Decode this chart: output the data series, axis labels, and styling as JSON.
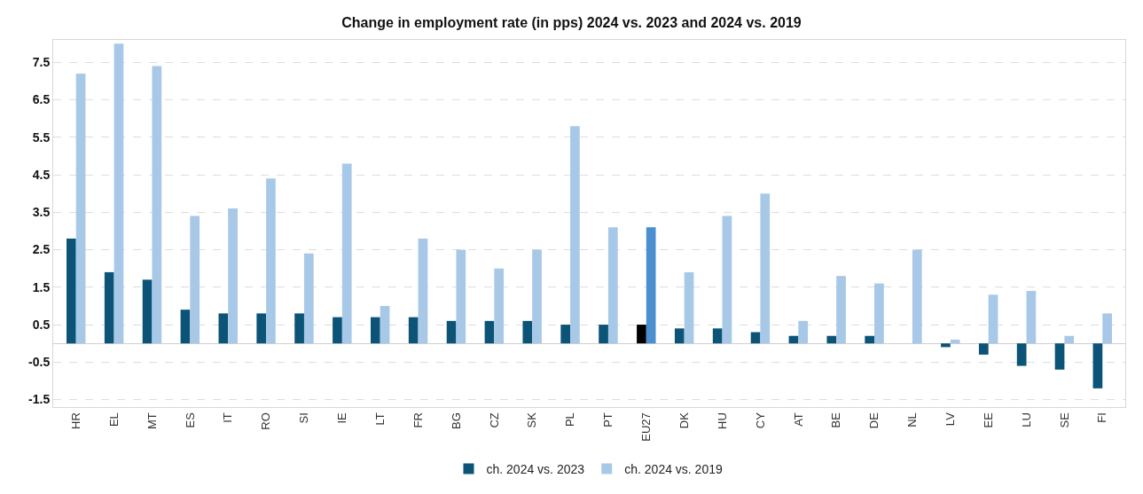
{
  "chart_data": {
    "type": "bar",
    "title": "Change in employment rate (in pps) 2024 vs. 2023 and 2024 vs. 2019",
    "categories": [
      "HR",
      "EL",
      "MT",
      "ES",
      "IT",
      "RO",
      "SI",
      "IE",
      "LT",
      "FR",
      "BG",
      "CZ",
      "SK",
      "PL",
      "PT",
      "EU27",
      "DK",
      "HU",
      "CY",
      "AT",
      "BE",
      "DE",
      "NL",
      "LV",
      "EE",
      "LU",
      "SE",
      "FI"
    ],
    "series": [
      {
        "name": "ch. 2024 vs. 2023",
        "color": "#0b5377",
        "colors": [
          null,
          null,
          null,
          null,
          null,
          null,
          null,
          null,
          null,
          null,
          null,
          null,
          null,
          null,
          null,
          "#000000",
          null,
          null,
          null,
          null,
          null,
          null,
          null,
          null,
          null,
          null,
          null,
          null
        ],
        "values": [
          2.8,
          1.9,
          1.7,
          0.9,
          0.8,
          0.8,
          0.8,
          0.7,
          0.7,
          0.7,
          0.6,
          0.6,
          0.6,
          0.5,
          0.5,
          0.5,
          0.4,
          0.4,
          0.3,
          0.2,
          0.2,
          0.2,
          0,
          -0.1,
          -0.3,
          -0.6,
          -0.7,
          -1.2
        ]
      },
      {
        "name": "ch. 2024 vs. 2019",
        "color": "#a8c8e8",
        "colors": [
          null,
          null,
          null,
          null,
          null,
          null,
          null,
          null,
          null,
          null,
          null,
          null,
          null,
          null,
          null,
          "#4a8fd0",
          null,
          null,
          null,
          null,
          null,
          null,
          null,
          null,
          null,
          null,
          null,
          null
        ],
        "values": [
          7.2,
          8.0,
          7.4,
          3.4,
          3.6,
          4.4,
          2.4,
          4.8,
          1.0,
          2.8,
          2.5,
          2.0,
          2.5,
          5.8,
          3.1,
          3.1,
          1.9,
          3.4,
          4.0,
          0.6,
          1.8,
          1.6,
          2.5,
          0.1,
          1.3,
          1.4,
          0.2,
          0.8
        ]
      }
    ],
    "ylim": [
      -1.7,
      8.1
    ],
    "yticks": [
      -1.5,
      -0.5,
      0.5,
      1.5,
      2.5,
      3.5,
      4.5,
      5.5,
      6.5,
      7.5
    ],
    "grid": "y",
    "legend": "bottom"
  }
}
